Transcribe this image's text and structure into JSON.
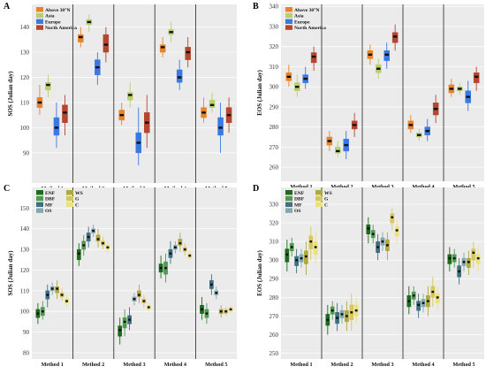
{
  "figure": {
    "panel_labels": [
      "A",
      "B",
      "C",
      "D"
    ]
  },
  "chart_data": [
    {
      "panel": "A",
      "type": "box",
      "ylabel": "SOS (Julian day)",
      "ylim": [
        78,
        149
      ],
      "yticks": [
        90,
        100,
        110,
        120,
        130,
        140
      ],
      "categories": [
        "Method 1",
        "Method 2",
        "Method 3",
        "Method 4",
        "Method 5"
      ],
      "legend": {
        "position": "top-left"
      },
      "series": [
        {
          "name": "Above 30°N",
          "color": "#e8832a",
          "boxes": [
            [
              105,
              108,
              110,
              112,
              117
            ],
            [
              132,
              134,
              136,
              137,
              140
            ],
            [
              101,
              103,
              105,
              107,
              110
            ],
            [
              128,
              130,
              132,
              133,
              136
            ],
            [
              102,
              104,
              106,
              108,
              112
            ]
          ]
        },
        {
          "name": "Asia",
          "color": "#b9cf6c",
          "boxes": [
            [
              112,
              115,
              117,
              118,
              121
            ],
            [
              138,
              141,
              142,
              143,
              145
            ],
            [
              108,
              111,
              113,
              114,
              118
            ],
            [
              134,
              137,
              138,
              139,
              142
            ],
            [
              106,
              108,
              109,
              111,
              114
            ]
          ]
        },
        {
          "name": "Europe",
          "color": "#3b79e2",
          "boxes": [
            [
              92,
              97,
              100,
              104,
              110
            ],
            [
              117,
              121,
              124,
              127,
              130
            ],
            [
              85,
              90,
              94,
              98,
              108
            ],
            [
              115,
              118,
              120,
              123,
              127
            ],
            [
              90,
              97,
              100,
              104,
              110
            ]
          ]
        },
        {
          "name": "North America",
          "color": "#b5452f",
          "boxes": [
            [
              97,
              102,
              106,
              109,
              113
            ],
            [
              126,
              130,
              133,
              137,
              140
            ],
            [
              92,
              98,
              102,
              106,
              113
            ],
            [
              124,
              127,
              130,
              132,
              136
            ],
            [
              98,
              102,
              105,
              108,
              112
            ]
          ]
        }
      ]
    },
    {
      "panel": "B",
      "type": "box",
      "ylabel": "EOS (Julian day)",
      "ylim": [
        253,
        341
      ],
      "yticks": [
        260,
        270,
        280,
        290,
        300,
        310,
        320,
        330,
        340
      ],
      "categories": [
        "Method 1",
        "Method 2",
        "Method 3",
        "Method 4",
        "Method 5"
      ],
      "legend": {
        "position": "top-left"
      },
      "series": [
        {
          "name": "Above 30°N",
          "color": "#e8832a",
          "boxes": [
            [
              300,
              303,
              305,
              307,
              311
            ],
            [
              268,
              271,
              273,
              275,
              278
            ],
            [
              311,
              314,
              316,
              318,
              321
            ],
            [
              277,
              279,
              281,
              283,
              286
            ],
            [
              295,
              297,
              299,
              301,
              304
            ]
          ]
        },
        {
          "name": "Asia",
          "color": "#b9cf6c",
          "boxes": [
            [
              295,
              298,
              300,
              302,
              306
            ],
            [
              265,
              267,
              268,
              270,
              273
            ],
            [
              304,
              307,
              309,
              311,
              314
            ],
            [
              273,
              275,
              276,
              277,
              279
            ],
            [
              296,
              298,
              299,
              300,
              302
            ]
          ]
        },
        {
          "name": "Europe",
          "color": "#3b79e2",
          "boxes": [
            [
              299,
              302,
              304,
              306,
              310
            ],
            [
              264,
              268,
              271,
              274,
              278
            ],
            [
              309,
              313,
              316,
              318,
              322
            ],
            [
              273,
              276,
              278,
              280,
              284
            ],
            [
              288,
              292,
              295,
              298,
              303
            ]
          ]
        },
        {
          "name": "North America",
          "color": "#b5452f",
          "boxes": [
            [
              308,
              312,
              315,
              317,
              320
            ],
            [
              275,
              279,
              281,
              283,
              287
            ],
            [
              318,
              322,
              325,
              327,
              331
            ],
            [
              282,
              286,
              289,
              292,
              296
            ],
            [
              298,
              302,
              305,
              307,
              310
            ]
          ]
        }
      ]
    },
    {
      "panel": "C",
      "type": "box",
      "ylabel": "SOS (Julian day)",
      "ylim": [
        77,
        160
      ],
      "yticks": [
        80,
        90,
        100,
        110,
        120,
        130,
        140,
        150
      ],
      "categories": [
        "Method 1",
        "Method 2",
        "Method 3",
        "Method 4",
        "Method 5"
      ],
      "legend": {
        "position": "top-left"
      },
      "series": [
        {
          "name": "ENF",
          "color": "#1a6b1a",
          "boxes": [
            [
              94,
              97,
              99,
              101,
              104
            ],
            [
              122,
              125,
              128,
              130,
              133
            ],
            [
              84,
              88,
              91,
              93,
              97
            ],
            [
              116,
              119,
              121,
              123,
              127
            ],
            [
              96,
              99,
              101,
              103,
              107
            ]
          ]
        },
        {
          "name": "DBF",
          "color": "#4f9a4f",
          "boxes": [
            [
              96,
              98,
              100,
              102,
              105
            ],
            [
              127,
              130,
              132,
              134,
              137
            ],
            [
              88,
              92,
              95,
              97,
              101
            ],
            [
              114,
              118,
              121,
              124,
              128
            ],
            [
              94,
              97,
              99,
              101,
              104
            ]
          ]
        },
        {
          "name": "MF",
          "color": "#3d7080",
          "boxes": [
            [
              102,
              106,
              108,
              110,
              113
            ],
            [
              131,
              134,
              136,
              138,
              141
            ],
            [
              91,
              94,
              96,
              98,
              102
            ],
            [
              123,
              126,
              128,
              130,
              134
            ],
            [
              108,
              111,
              113,
              115,
              118
            ]
          ]
        },
        {
          "name": "OS",
          "color": "#7fa8b0",
          "boxes": [
            [
              108,
              110,
              111,
              112,
              114
            ],
            [
              136,
              138,
              139,
              140,
              142
            ],
            [
              103,
              105,
              106,
              107,
              109
            ],
            [
              128,
              130,
              131,
              132,
              134
            ],
            [
              106,
              108,
              109,
              110,
              112
            ]
          ]
        },
        {
          "name": "WS",
          "color": "#b0a838",
          "boxes": [
            [
              106,
              109,
              111,
              112,
              115
            ],
            [
              131,
              134,
              135,
              137,
              140
            ],
            [
              104,
              107,
              108,
              110,
              113
            ],
            [
              129,
              132,
              133,
              135,
              138
            ],
            [
              97,
              99,
              100,
              101,
              103
            ]
          ]
        },
        {
          "name": "G",
          "color": "#d9c65c",
          "boxes": [
            [
              105,
              107,
              108,
              109,
              111
            ],
            [
              130,
              132,
              133,
              134,
              136
            ],
            [
              102,
              104,
              105,
              106,
              108
            ],
            [
              127,
              129,
              130,
              131,
              133
            ],
            [
              98,
              99,
              100,
              101,
              102
            ]
          ]
        },
        {
          "name": "C",
          "color": "#ece27a",
          "boxes": [
            [
              102,
              104,
              105,
              106,
              108
            ],
            [
              128,
              130,
              131,
              132,
              134
            ],
            [
              100,
              101,
              102,
              103,
              104
            ],
            [
              125,
              126,
              127,
              128,
              130
            ],
            [
              99,
              100,
              101,
              102,
              103
            ]
          ]
        }
      ]
    },
    {
      "panel": "D",
      "type": "box",
      "ylabel": "EOS (Julian day)",
      "ylim": [
        247,
        339
      ],
      "yticks": [
        250,
        260,
        270,
        280,
        290,
        300,
        310,
        320,
        330
      ],
      "categories": [
        "Method 1",
        "Method 2",
        "Method 3",
        "Method 4",
        "Method 5"
      ],
      "legend": {
        "position": "top-left"
      },
      "series": [
        {
          "name": "ENF",
          "color": "#1a6b1a",
          "boxes": [
            [
              294,
              299,
              303,
              306,
              311
            ],
            [
              260,
              265,
              268,
              271,
              276
            ],
            [
              309,
              314,
              317,
              319,
              323
            ],
            [
              271,
              275,
              278,
              281,
              286
            ],
            [
              294,
              298,
              301,
              303,
              307
            ]
          ]
        },
        {
          "name": "DBF",
          "color": "#4f9a4f",
          "boxes": [
            [
              302,
              305,
              307,
              309,
              312
            ],
            [
              268,
              271,
              273,
              275,
              278
            ],
            [
              309,
              312,
              314,
              316,
              319
            ],
            [
              276,
              279,
              281,
              283,
              286
            ],
            [
              296,
              299,
              301,
              303,
              306
            ]
          ]
        },
        {
          "name": "MF",
          "color": "#3d7080",
          "boxes": [
            [
              293,
              297,
              300,
              302,
              306
            ],
            [
              262,
              266,
              269,
              272,
              277
            ],
            [
              300,
              304,
              307,
              310,
              314
            ],
            [
              269,
              273,
              276,
              278,
              282
            ],
            [
              287,
              291,
              294,
              297,
              301
            ]
          ]
        },
        {
          "name": "OS",
          "color": "#7fa8b0",
          "boxes": [
            [
              296,
              299,
              301,
              303,
              306
            ],
            [
              266,
              269,
              271,
              273,
              276
            ],
            [
              305,
              308,
              310,
              312,
              315
            ],
            [
              272,
              275,
              277,
              279,
              282
            ],
            [
              294,
              297,
              299,
              301,
              304
            ]
          ]
        },
        {
          "name": "WS",
          "color": "#b0a838",
          "boxes": [
            [
              292,
              298,
              302,
              305,
              310
            ],
            [
              262,
              267,
              270,
              273,
              278
            ],
            [
              300,
              305,
              308,
              311,
              315
            ],
            [
              270,
              275,
              278,
              281,
              286
            ],
            [
              292,
              296,
              299,
              301,
              305
            ]
          ]
        },
        {
          "name": "G",
          "color": "#d9c65c",
          "boxes": [
            [
              300,
              306,
              310,
              313,
              318
            ],
            [
              262,
              268,
              272,
              276,
              282
            ],
            [
              316,
              320,
              323,
              325,
              328
            ],
            [
              275,
              280,
              283,
              286,
              291
            ],
            [
              296,
              300,
              304,
              306,
              310
            ]
          ]
        },
        {
          "name": "C",
          "color": "#ece27a",
          "boxes": [
            [
              298,
              303,
              307,
              310,
              315
            ],
            [
              266,
              270,
              273,
              276,
              280
            ],
            [
              309,
              313,
              316,
              318,
              322
            ],
            [
              273,
              277,
              280,
              282,
              286
            ],
            [
              294,
              298,
              301,
              303,
              307
            ]
          ]
        }
      ]
    }
  ]
}
